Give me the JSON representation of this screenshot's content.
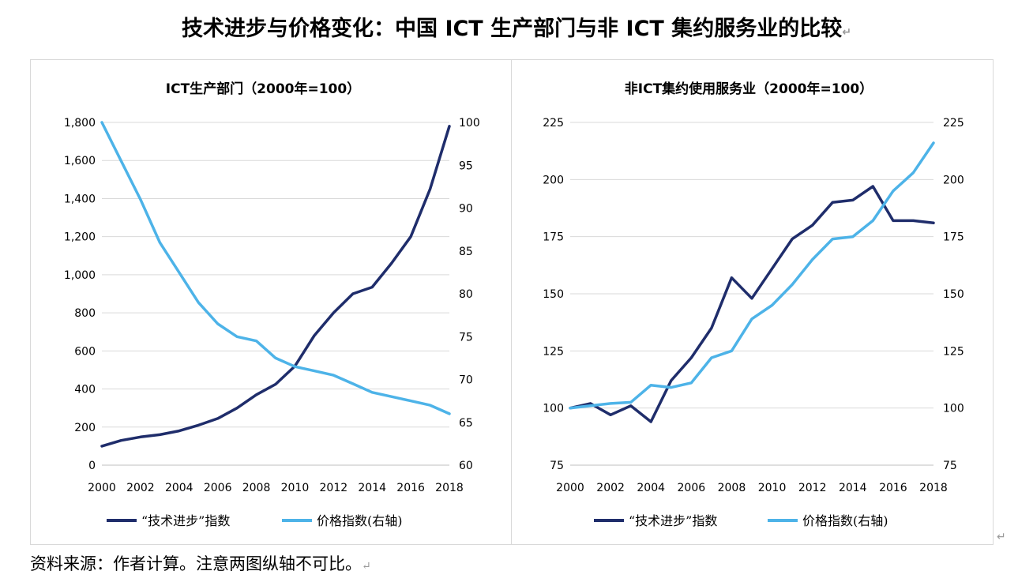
{
  "title": "技术进步与价格变化：中国 ICT 生产部门与非 ICT 集约服务业的比较",
  "paragraph_mark": "↵",
  "source_note": "资料来源：作者计算。注意两图纵轴不可比。",
  "colors": {
    "tech_series": "#1f2d6b",
    "price_series": "#4db3e8",
    "grid": "#d9d9d9",
    "axis": "#bfbfbf"
  },
  "chart_data": [
    {
      "type": "line",
      "title": "ICT生产部门（2000年=100）",
      "x": [
        2000,
        2001,
        2002,
        2003,
        2004,
        2005,
        2006,
        2007,
        2008,
        2009,
        2010,
        2011,
        2012,
        2013,
        2014,
        2015,
        2016,
        2017,
        2018
      ],
      "x_tick_labels": [
        "2000",
        "2002",
        "2004",
        "2006",
        "2008",
        "2010",
        "2012",
        "2014",
        "2016",
        "2018"
      ],
      "y_left": {
        "min": 0,
        "max": 1800,
        "ticks": [
          "0",
          "200",
          "400",
          "600",
          "800",
          "1,000",
          "1,200",
          "1,400",
          "1,600",
          "1,800"
        ]
      },
      "y_right": {
        "min": 60,
        "max": 100,
        "ticks": [
          "60",
          "65",
          "70",
          "75",
          "80",
          "85",
          "90",
          "95",
          "100"
        ]
      },
      "series": [
        {
          "name": "“技术进步”指数",
          "axis": "left",
          "values": [
            100,
            130,
            148,
            160,
            180,
            210,
            245,
            300,
            370,
            425,
            520,
            680,
            800,
            900,
            935,
            1060,
            1200,
            1450,
            1780
          ]
        },
        {
          "name": "价格指数(右轴)",
          "axis": "right",
          "values": [
            100,
            95.5,
            91,
            86,
            82.5,
            79,
            76.5,
            75,
            74.5,
            72.5,
            71.5,
            71,
            70.5,
            69.5,
            68.5,
            68,
            67.5,
            67,
            66
          ]
        }
      ]
    },
    {
      "type": "line",
      "title": "非ICT集约使用服务业（2000年=100）",
      "x": [
        2000,
        2001,
        2002,
        2003,
        2004,
        2005,
        2006,
        2007,
        2008,
        2009,
        2010,
        2011,
        2012,
        2013,
        2014,
        2015,
        2016,
        2017,
        2018
      ],
      "x_tick_labels": [
        "2000",
        "2002",
        "2004",
        "2006",
        "2008",
        "2010",
        "2012",
        "2014",
        "2016",
        "2018"
      ],
      "y_left": {
        "min": 75,
        "max": 225,
        "ticks": [
          "75",
          "100",
          "125",
          "150",
          "175",
          "200",
          "225"
        ]
      },
      "y_right": {
        "min": 75,
        "max": 225,
        "ticks": [
          "75",
          "100",
          "125",
          "150",
          "175",
          "200",
          "225"
        ]
      },
      "series": [
        {
          "name": "“技术进步”指数",
          "axis": "left",
          "values": [
            100,
            102,
            97,
            101,
            94,
            112,
            122,
            135,
            157,
            148,
            161,
            174,
            180,
            190,
            191,
            197,
            182,
            182,
            181
          ]
        },
        {
          "name": "价格指数(右轴)",
          "axis": "right",
          "values": [
            100,
            101,
            102,
            102.5,
            110,
            109,
            111,
            122,
            125,
            139,
            145,
            154,
            165,
            174,
            175,
            182,
            195,
            203,
            216
          ]
        }
      ]
    }
  ]
}
